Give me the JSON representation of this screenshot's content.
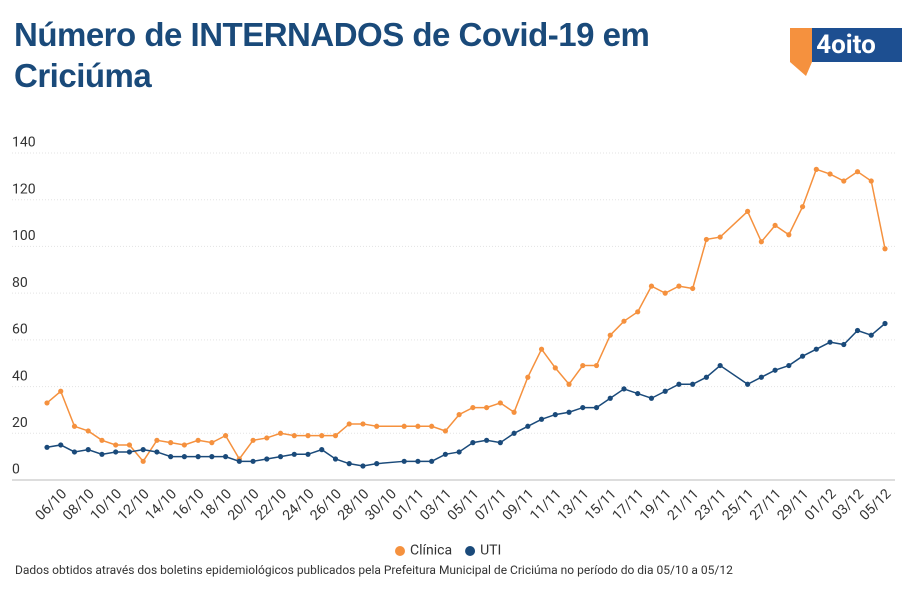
{
  "chart_data": {
    "type": "line",
    "title": "Número de INTERNADOS de Covid-19 em Criciúma",
    "logo": "4oito",
    "note": "Dados obtidos através dos boletins epidemiológicos publicados pela Prefeitura Municipal de Criciúma no período do dia 05/10 a 05/12",
    "x": [
      "05/10",
      "06/10",
      "07/10",
      "08/10",
      "09/10",
      "10/10",
      "11/10",
      "12/10",
      "13/10",
      "14/10",
      "15/10",
      "16/10",
      "17/10",
      "18/10",
      "19/10",
      "20/10",
      "21/10",
      "22/10",
      "23/10",
      "24/10",
      "25/10",
      "26/10",
      "27/10",
      "28/10",
      "29/10",
      "31/10",
      "01/11",
      "02/11",
      "03/11",
      "04/11",
      "05/11",
      "06/11",
      "07/11",
      "08/11",
      "09/11",
      "10/11",
      "11/11",
      "12/11",
      "13/11",
      "14/11",
      "15/11",
      "16/11",
      "17/11",
      "18/11",
      "19/11",
      "20/11",
      "21/11",
      "22/11",
      "23/11",
      "25/11",
      "26/11",
      "27/11",
      "28/11",
      "29/11",
      "30/11",
      "01/12",
      "02/12",
      "03/12",
      "04/12",
      "05/12"
    ],
    "xlim": [
      "05/10",
      "05/12"
    ],
    "xticks": [
      "06/10",
      "08/10",
      "10/10",
      "12/10",
      "14/10",
      "16/10",
      "18/10",
      "20/10",
      "22/10",
      "24/10",
      "26/10",
      "28/10",
      "30/10",
      "01/11",
      "03/11",
      "05/11",
      "07/11",
      "09/11",
      "11/11",
      "13/11",
      "15/11",
      "17/11",
      "19/11",
      "21/11",
      "23/11",
      "25/11",
      "27/11",
      "29/11",
      "01/12",
      "03/12",
      "05/12"
    ],
    "series": [
      {
        "name": "Clínica",
        "color": "#f5913e",
        "values": [
          33,
          38,
          23,
          21,
          17,
          15,
          15,
          8,
          17,
          16,
          15,
          17,
          16,
          19,
          9,
          17,
          18,
          20,
          19,
          19,
          19,
          19,
          24,
          24,
          23,
          23,
          23,
          23,
          21,
          28,
          31,
          31,
          33,
          29,
          44,
          56,
          48,
          41,
          49,
          49,
          62,
          68,
          72,
          83,
          80,
          83,
          82,
          103,
          104,
          115,
          102,
          109,
          105,
          117,
          133,
          131,
          128,
          132,
          128,
          99
        ]
      },
      {
        "name": "UTI",
        "color": "#1a4a7a",
        "values": [
          14,
          15,
          12,
          13,
          11,
          12,
          12,
          13,
          12,
          10,
          10,
          10,
          10,
          10,
          8,
          8,
          9,
          10,
          11,
          11,
          13,
          9,
          7,
          6,
          7,
          8,
          8,
          8,
          11,
          12,
          16,
          17,
          16,
          20,
          23,
          26,
          28,
          29,
          31,
          31,
          35,
          39,
          37,
          35,
          38,
          41,
          41,
          44,
          49,
          41,
          44,
          47,
          49,
          53,
          56,
          59,
          58,
          64,
          62,
          67
        ]
      }
    ],
    "ylim": [
      0,
      140
    ],
    "yticks": [
      0,
      20,
      40,
      60,
      80,
      100,
      120,
      140
    ],
    "grid": true
  }
}
